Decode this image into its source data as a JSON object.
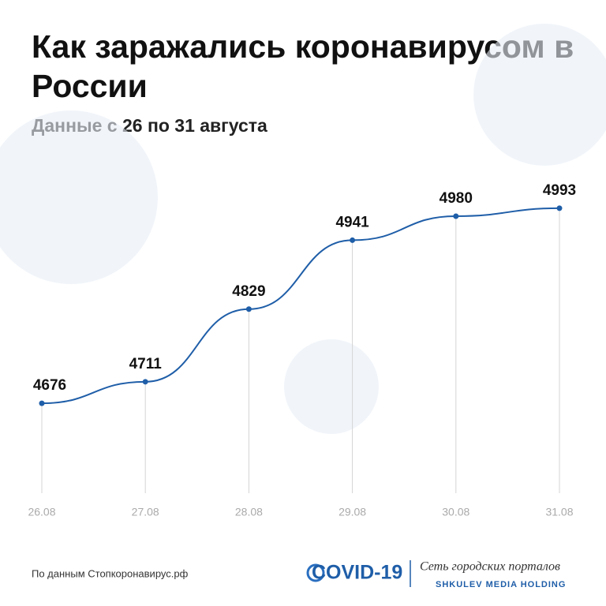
{
  "chart_data": {
    "type": "line",
    "title": "Как заражались коронавирусом в России",
    "subtitle": "Данные с 26 по 31 августа",
    "categories": [
      "26.08",
      "27.08",
      "28.08",
      "29.08",
      "30.08",
      "31.08"
    ],
    "values": [
      4676,
      4711,
      4829,
      4941,
      4980,
      4993
    ],
    "color": "#1f5ea8",
    "ylim": [
      4530,
      5030
    ]
  },
  "source": "По данным Стопкоронавирус.рф",
  "logo": {
    "name": "COVID-19",
    "network": "Сеть городских порталов",
    "holding": "SHKULEV MEDIA HOLDING"
  }
}
